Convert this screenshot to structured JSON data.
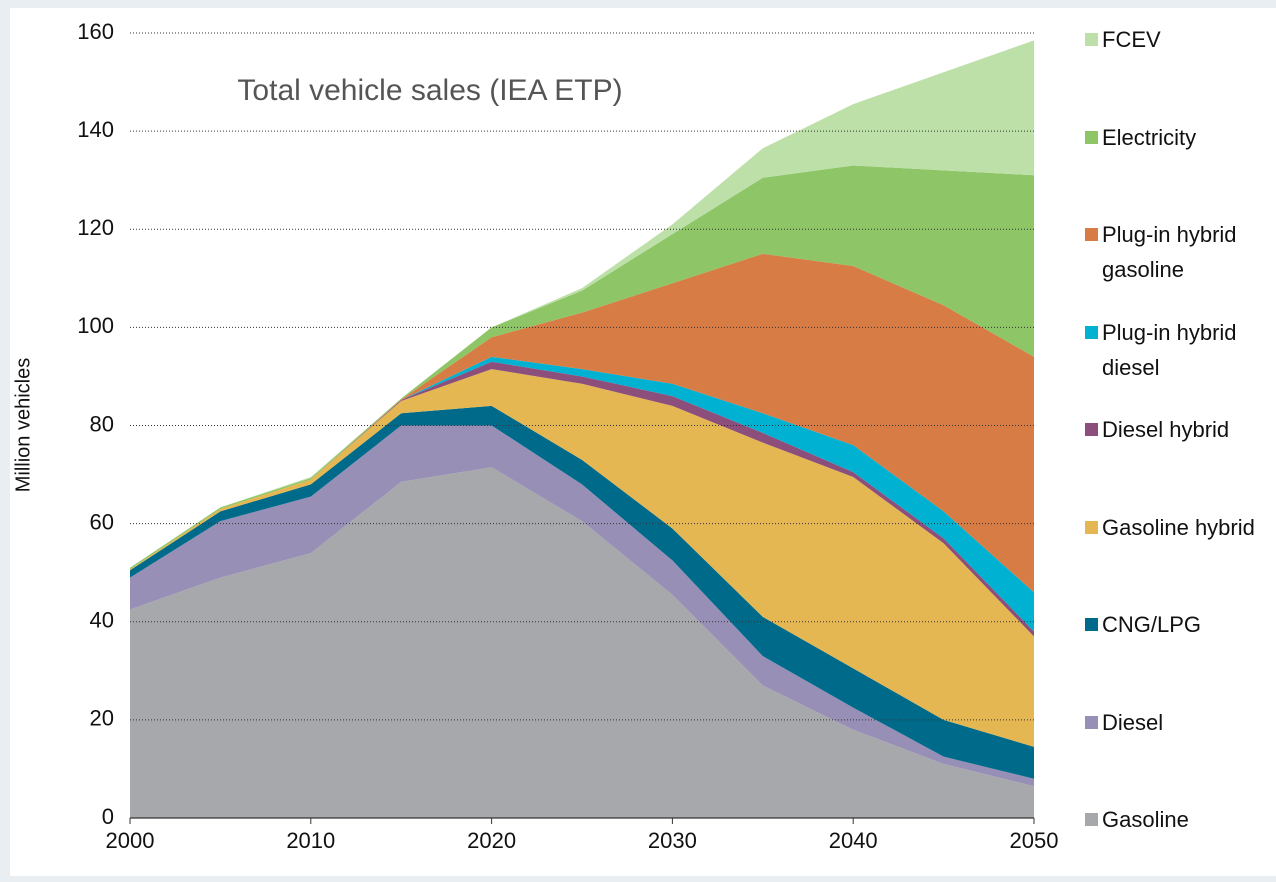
{
  "chart_data": {
    "type": "stacked_area",
    "title": "Total vehicle sales (IEA ETP)",
    "y_label": "Million vehicles",
    "x": [
      2000,
      2005,
      2010,
      2015,
      2020,
      2025,
      2030,
      2035,
      2040,
      2045,
      2050
    ],
    "xlim": [
      2000,
      2050
    ],
    "xticks": [
      2000,
      2010,
      2020,
      2030,
      2040,
      2050
    ],
    "ylim": [
      0,
      160
    ],
    "yticks": [
      0,
      20,
      40,
      60,
      80,
      100,
      120,
      140,
      160
    ],
    "grid": true,
    "legend": "right",
    "series": [
      {
        "name": "Gasoline",
        "color": "#a7a8ab",
        "values": [
          42.5,
          49,
          54,
          68.5,
          71.5,
          60.5,
          45.5,
          27,
          18,
          11,
          6.5
        ]
      },
      {
        "name": "Diesel",
        "color": "#978fb6",
        "values": [
          6.5,
          11.5,
          11.5,
          11.5,
          8.5,
          7.5,
          7,
          6,
          4.5,
          1.5,
          1.5
        ]
      },
      {
        "name": "CNG/LPG",
        "color": "#006a8b",
        "values": [
          1.5,
          2,
          2.5,
          2.5,
          4,
          5,
          6.5,
          8,
          8,
          7.5,
          6.5
        ]
      },
      {
        "name": "Gasoline hybrid",
        "color": "#e4b752",
        "values": [
          0.2,
          0.5,
          1,
          2.5,
          7.5,
          15.5,
          25,
          35.5,
          39,
          36,
          22.5
        ]
      },
      {
        "name": "Diesel hybrid",
        "color": "#8c4e7b",
        "values": [
          0,
          0,
          0,
          0.2,
          1.5,
          1.5,
          2,
          2,
          1,
          1,
          1
        ]
      },
      {
        "name": "Plug-in hybrid diesel",
        "color": "#00b1d1",
        "values": [
          0,
          0,
          0,
          0,
          1,
          1.5,
          2.5,
          4,
          5.5,
          5.5,
          8
        ]
      },
      {
        "name": "Plug-in hybrid gasoline",
        "color": "#d87c45",
        "values": [
          0,
          0,
          0,
          0.1,
          4,
          11.5,
          20.5,
          32.5,
          36.5,
          42,
          48
        ]
      },
      {
        "name": "Electricity",
        "color": "#8dc567",
        "values": [
          0.3,
          0.3,
          0.3,
          0.2,
          2,
          4.5,
          10,
          15.5,
          20.5,
          27.5,
          37
        ]
      },
      {
        "name": "FCEV",
        "color": "#bde0a9",
        "values": [
          0,
          0,
          0.2,
          0,
          0,
          0.5,
          2,
          6,
          12.5,
          20,
          27.5
        ]
      }
    ]
  }
}
